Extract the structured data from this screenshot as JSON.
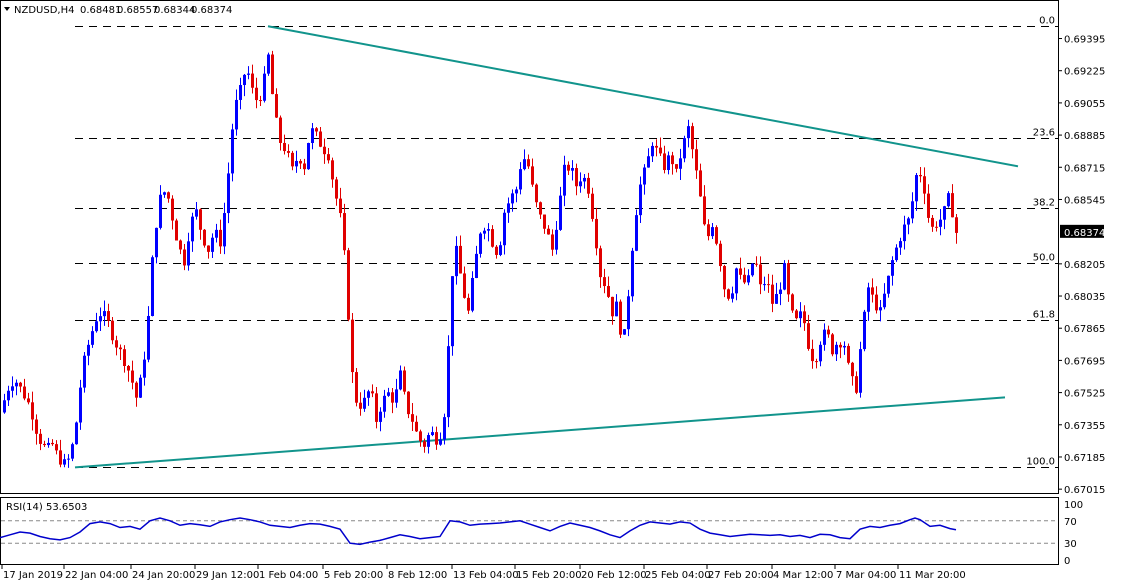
{
  "header": {
    "symbol": "NZDUSD,H4",
    "open": "0.68481",
    "high": "0.68557",
    "low": "0.68344",
    "close": "0.68374"
  },
  "rsi_header": "RSI(14) 53.6503",
  "colors": {
    "bull": "#0000ff",
    "bear": "#e00000",
    "trendline": "#11948c",
    "rsi": "#0000cc",
    "current_price_box": "#000000"
  },
  "fib_levels": [
    {
      "label": "0.0",
      "price": 0.6946
    },
    {
      "label": "23.6",
      "price": 0.68868
    },
    {
      "label": "38.2",
      "price": 0.68502
    },
    {
      "label": "50.0",
      "price": 0.68207
    },
    {
      "label": "61.8",
      "price": 0.67911
    },
    {
      "label": "100.0",
      "price": 0.6713
    }
  ],
  "rsi_levels": [
    70,
    30
  ],
  "price_axis_labels": [
    "0.69395",
    "0.69225",
    "0.69055",
    "0.68885",
    "0.68715",
    "0.68545",
    "0.68374",
    "0.68205",
    "0.68035",
    "0.67865",
    "0.67695",
    "0.67525",
    "0.67355",
    "0.67185",
    "0.67015"
  ],
  "rsi_axis_labels": [
    "100",
    "70",
    "30",
    "0"
  ],
  "current_price": "0.68374",
  "chart_data": {
    "type": "candlestick",
    "title": "NZDUSD,H4",
    "y_range": [
      0.6698,
      0.6955
    ],
    "x_labels": [
      "17 Jan 2019",
      "22 Jan 04:00",
      "24 Jan 20:00",
      "29 Jan 12:00",
      "1 Feb 04:00",
      "5 Feb 20:00",
      "8 Feb 12:00",
      "13 Feb 04:00",
      "15 Feb 20:00",
      "20 Feb 12:00",
      "25 Feb 04:00",
      "27 Feb 20:00",
      "4 Mar 12:00",
      "7 Mar 04:00",
      "11 Mar 20:00"
    ],
    "price_path": [
      [
        0,
        0.6742
      ],
      [
        8,
        0.6755
      ],
      [
        14,
        0.676
      ],
      [
        22,
        0.6753
      ],
      [
        30,
        0.6745
      ],
      [
        38,
        0.6729
      ],
      [
        46,
        0.6722
      ],
      [
        52,
        0.6725
      ],
      [
        58,
        0.6718
      ],
      [
        64,
        0.6715
      ],
      [
        70,
        0.6718
      ],
      [
        76,
        0.6737
      ],
      [
        82,
        0.6765
      ],
      [
        90,
        0.6782
      ],
      [
        98,
        0.6795
      ],
      [
        106,
        0.6792
      ],
      [
        114,
        0.678
      ],
      [
        122,
        0.6772
      ],
      [
        130,
        0.6762
      ],
      [
        136,
        0.675
      ],
      [
        142,
        0.6762
      ],
      [
        148,
        0.6792
      ],
      [
        152,
        0.6822
      ],
      [
        156,
        0.6842
      ],
      [
        160,
        0.6855
      ],
      [
        166,
        0.686
      ],
      [
        172,
        0.6845
      ],
      [
        178,
        0.683
      ],
      [
        184,
        0.6822
      ],
      [
        190,
        0.6842
      ],
      [
        196,
        0.6848
      ],
      [
        202,
        0.6835
      ],
      [
        208,
        0.6828
      ],
      [
        214,
        0.6838
      ],
      [
        220,
        0.6832
      ],
      [
        226,
        0.6855
      ],
      [
        230,
        0.6882
      ],
      [
        234,
        0.6902
      ],
      [
        240,
        0.6912
      ],
      [
        246,
        0.6925
      ],
      [
        252,
        0.6912
      ],
      [
        258,
        0.6905
      ],
      [
        264,
        0.6918
      ],
      [
        268,
        0.693
      ],
      [
        274,
        0.69
      ],
      [
        280,
        0.6885
      ],
      [
        286,
        0.688
      ],
      [
        292,
        0.687
      ],
      [
        298,
        0.6878
      ],
      [
        304,
        0.6872
      ],
      [
        310,
        0.6892
      ],
      [
        316,
        0.6888
      ],
      [
        322,
        0.6882
      ],
      [
        328,
        0.6878
      ],
      [
        334,
        0.686
      ],
      [
        340,
        0.6845
      ],
      [
        346,
        0.6815
      ],
      [
        350,
        0.6772
      ],
      [
        354,
        0.6752
      ],
      [
        358,
        0.6745
      ],
      [
        364,
        0.6748
      ],
      [
        370,
        0.6755
      ],
      [
        376,
        0.6738
      ],
      [
        382,
        0.6748
      ],
      [
        388,
        0.6752
      ],
      [
        394,
        0.6748
      ],
      [
        400,
        0.6762
      ],
      [
        406,
        0.6745
      ],
      [
        412,
        0.6738
      ],
      [
        418,
        0.6728
      ],
      [
        424,
        0.6725
      ],
      [
        430,
        0.6732
      ],
      [
        436,
        0.6728
      ],
      [
        442,
        0.6732
      ],
      [
        446,
        0.6752
      ],
      [
        450,
        0.68
      ],
      [
        454,
        0.6832
      ],
      [
        458,
        0.6822
      ],
      [
        462,
        0.6808
      ],
      [
        468,
        0.6795
      ],
      [
        474,
        0.6818
      ],
      [
        480,
        0.6838
      ],
      [
        486,
        0.6842
      ],
      [
        492,
        0.6832
      ],
      [
        498,
        0.6825
      ],
      [
        504,
        0.6848
      ],
      [
        510,
        0.6855
      ],
      [
        516,
        0.686
      ],
      [
        522,
        0.6878
      ],
      [
        528,
        0.6872
      ],
      [
        534,
        0.6855
      ],
      [
        540,
        0.6845
      ],
      [
        546,
        0.6838
      ],
      [
        552,
        0.6828
      ],
      [
        558,
        0.6848
      ],
      [
        564,
        0.687
      ],
      [
        570,
        0.6872
      ],
      [
        576,
        0.6862
      ],
      [
        582,
        0.6868
      ],
      [
        588,
        0.686
      ],
      [
        594,
        0.684
      ],
      [
        600,
        0.6815
      ],
      [
        606,
        0.6808
      ],
      [
        612,
        0.6795
      ],
      [
        618,
        0.68
      ],
      [
        622,
        0.6772
      ],
      [
        628,
        0.6805
      ],
      [
        634,
        0.6842
      ],
      [
        640,
        0.6862
      ],
      [
        646,
        0.6872
      ],
      [
        652,
        0.6885
      ],
      [
        658,
        0.6878
      ],
      [
        664,
        0.6872
      ],
      [
        670,
        0.6878
      ],
      [
        676,
        0.6868
      ],
      [
        682,
        0.6882
      ],
      [
        688,
        0.6892
      ],
      [
        694,
        0.6875
      ],
      [
        700,
        0.6855
      ],
      [
        706,
        0.6832
      ],
      [
        712,
        0.6842
      ],
      [
        718,
        0.6828
      ],
      [
        724,
        0.6808
      ],
      [
        730,
        0.6802
      ],
      [
        736,
        0.6818
      ],
      [
        742,
        0.681
      ],
      [
        748,
        0.6812
      ],
      [
        754,
        0.6825
      ],
      [
        760,
        0.6808
      ],
      [
        766,
        0.6812
      ],
      [
        772,
        0.68
      ],
      [
        778,
        0.6805
      ],
      [
        784,
        0.6818
      ],
      [
        790,
        0.6795
      ],
      [
        796,
        0.679
      ],
      [
        802,
        0.6795
      ],
      [
        808,
        0.6778
      ],
      [
        814,
        0.6768
      ],
      [
        820,
        0.678
      ],
      [
        826,
        0.6785
      ],
      [
        832,
        0.6775
      ],
      [
        838,
        0.678
      ],
      [
        844,
        0.6778
      ],
      [
        850,
        0.676
      ],
      [
        856,
        0.6755
      ],
      [
        862,
        0.6785
      ],
      [
        868,
        0.6808
      ],
      [
        874,
        0.68
      ],
      [
        880,
        0.6795
      ],
      [
        886,
        0.6808
      ],
      [
        892,
        0.6822
      ],
      [
        898,
        0.6832
      ],
      [
        904,
        0.684
      ],
      [
        910,
        0.6845
      ],
      [
        914,
        0.6862
      ],
      [
        918,
        0.6872
      ],
      [
        924,
        0.686
      ],
      [
        930,
        0.6838
      ],
      [
        936,
        0.6842
      ],
      [
        942,
        0.6845
      ],
      [
        948,
        0.6855
      ],
      [
        952,
        0.6848
      ],
      [
        956,
        0.6837
      ]
    ],
    "trendlines": [
      {
        "x1": 268,
        "p1": 0.6946,
        "x2": 1018,
        "p2": 0.6872
      },
      {
        "x1": 75,
        "p1": 0.6713,
        "x2": 1005,
        "p2": 0.675
      }
    ],
    "rsi_path": [
      [
        0,
        40
      ],
      [
        10,
        45
      ],
      [
        20,
        50
      ],
      [
        30,
        48
      ],
      [
        40,
        42
      ],
      [
        50,
        38
      ],
      [
        60,
        36
      ],
      [
        70,
        40
      ],
      [
        80,
        50
      ],
      [
        90,
        65
      ],
      [
        100,
        68
      ],
      [
        110,
        65
      ],
      [
        120,
        58
      ],
      [
        130,
        60
      ],
      [
        140,
        55
      ],
      [
        150,
        70
      ],
      [
        160,
        75
      ],
      [
        170,
        70
      ],
      [
        180,
        62
      ],
      [
        190,
        65
      ],
      [
        200,
        63
      ],
      [
        210,
        60
      ],
      [
        220,
        68
      ],
      [
        230,
        72
      ],
      [
        240,
        75
      ],
      [
        250,
        72
      ],
      [
        260,
        68
      ],
      [
        270,
        62
      ],
      [
        280,
        60
      ],
      [
        290,
        58
      ],
      [
        300,
        62
      ],
      [
        310,
        65
      ],
      [
        320,
        64
      ],
      [
        330,
        60
      ],
      [
        340,
        55
      ],
      [
        350,
        30
      ],
      [
        360,
        28
      ],
      [
        370,
        32
      ],
      [
        380,
        35
      ],
      [
        390,
        40
      ],
      [
        400,
        45
      ],
      [
        410,
        42
      ],
      [
        420,
        38
      ],
      [
        430,
        40
      ],
      [
        440,
        42
      ],
      [
        450,
        70
      ],
      [
        460,
        68
      ],
      [
        470,
        62
      ],
      [
        480,
        64
      ],
      [
        490,
        65
      ],
      [
        500,
        66
      ],
      [
        510,
        68
      ],
      [
        520,
        70
      ],
      [
        530,
        64
      ],
      [
        540,
        58
      ],
      [
        550,
        52
      ],
      [
        560,
        60
      ],
      [
        570,
        66
      ],
      [
        580,
        62
      ],
      [
        590,
        58
      ],
      [
        600,
        52
      ],
      [
        610,
        45
      ],
      [
        620,
        40
      ],
      [
        630,
        52
      ],
      [
        640,
        62
      ],
      [
        650,
        68
      ],
      [
        660,
        66
      ],
      [
        670,
        64
      ],
      [
        680,
        68
      ],
      [
        690,
        66
      ],
      [
        700,
        55
      ],
      [
        710,
        48
      ],
      [
        720,
        45
      ],
      [
        730,
        42
      ],
      [
        740,
        44
      ],
      [
        750,
        46
      ],
      [
        760,
        45
      ],
      [
        770,
        44
      ],
      [
        780,
        45
      ],
      [
        790,
        42
      ],
      [
        800,
        44
      ],
      [
        810,
        40
      ],
      [
        820,
        46
      ],
      [
        830,
        45
      ],
      [
        840,
        40
      ],
      [
        850,
        38
      ],
      [
        860,
        55
      ],
      [
        870,
        60
      ],
      [
        880,
        58
      ],
      [
        890,
        62
      ],
      [
        900,
        65
      ],
      [
        910,
        72
      ],
      [
        915,
        75
      ],
      [
        920,
        72
      ],
      [
        930,
        60
      ],
      [
        940,
        62
      ],
      [
        950,
        56
      ],
      [
        956,
        54
      ]
    ]
  }
}
